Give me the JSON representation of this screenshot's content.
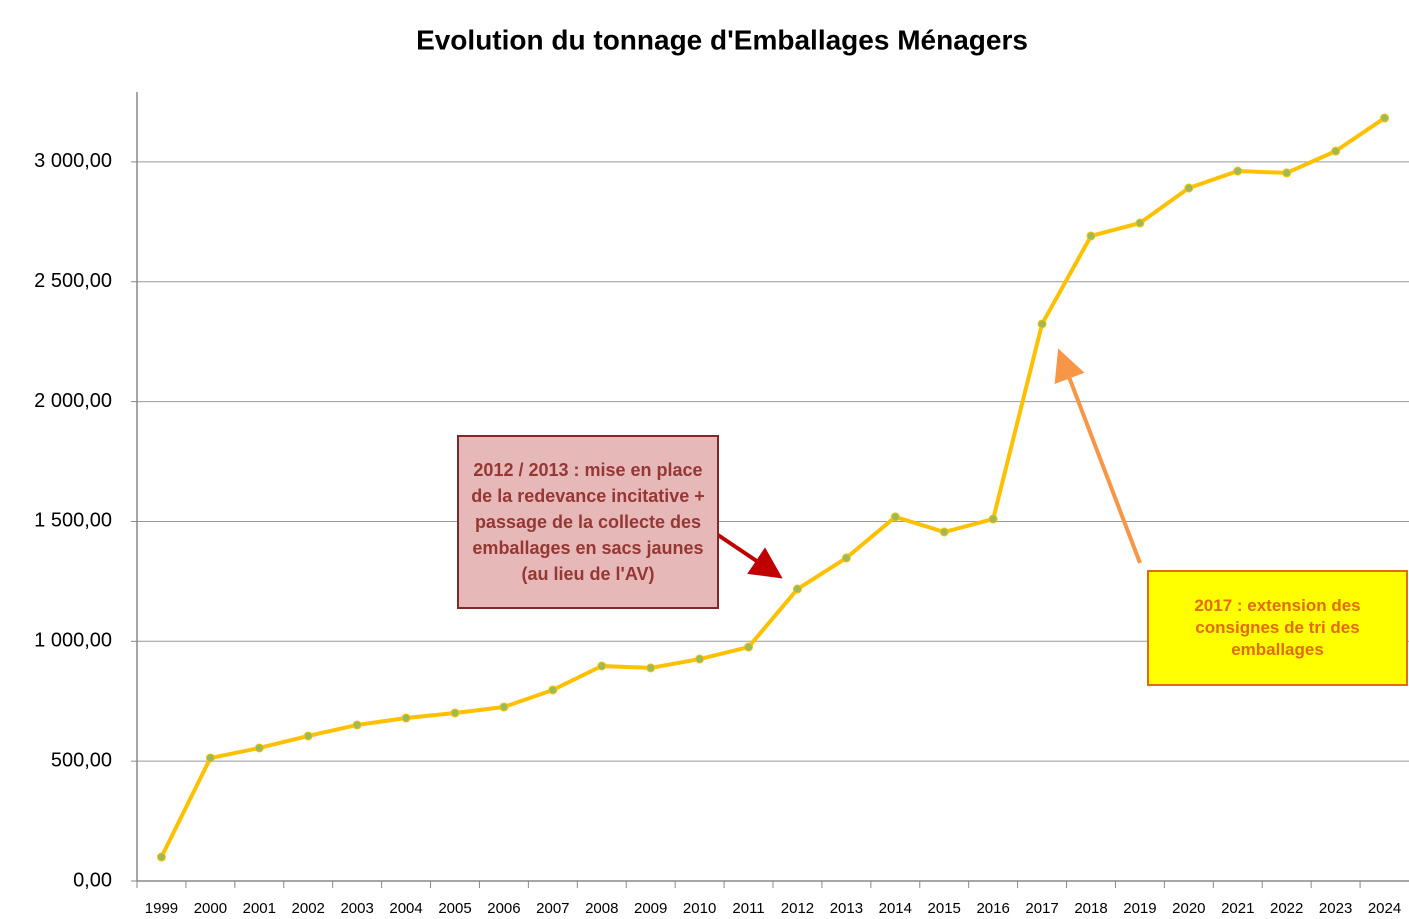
{
  "chart_data": {
    "type": "line",
    "title": "Evolution du tonnage d'Emballages Ménagers",
    "categories": [
      "1999",
      "2000",
      "2001",
      "2002",
      "2003",
      "2004",
      "2005",
      "2006",
      "2007",
      "2008",
      "2009",
      "2010",
      "2011",
      "2012",
      "2013",
      "2014",
      "2015",
      "2016",
      "2017",
      "2018",
      "2019",
      "2020",
      "2021",
      "2022",
      "2023",
      "2024"
    ],
    "series": [
      {
        "color": "#FFC000",
        "marker_color": "#9BBB59",
        "values": [
          100,
          513,
          555,
          605,
          651,
          680,
          701,
          726,
          797,
          897,
          889,
          926,
          976,
          1218,
          1348,
          1519,
          1456,
          1510,
          2324,
          2691,
          2745,
          2891,
          2962,
          2954,
          3045,
          3183
        ]
      }
    ],
    "ylim": [
      0,
      3300
    ],
    "yticks": [
      {
        "value": 0,
        "label": "0,00"
      },
      {
        "value": 500,
        "label": "500,00"
      },
      {
        "value": 1000,
        "label": "1 000,00"
      },
      {
        "value": 1500,
        "label": "1 500,00"
      },
      {
        "value": 2000,
        "label": "2 000,00"
      },
      {
        "value": 2500,
        "label": "2 500,00"
      },
      {
        "value": 3000,
        "label": "3 000,00"
      }
    ],
    "grid": true,
    "annotations": [
      {
        "text": "2012 / 2013 : mise en place de la redevance incitative + passage de la collecte des emballages en sacs jaunes (au lieu de l'AV)"
      },
      {
        "text": "2017 : extension des consignes de tri des emballages"
      }
    ]
  }
}
